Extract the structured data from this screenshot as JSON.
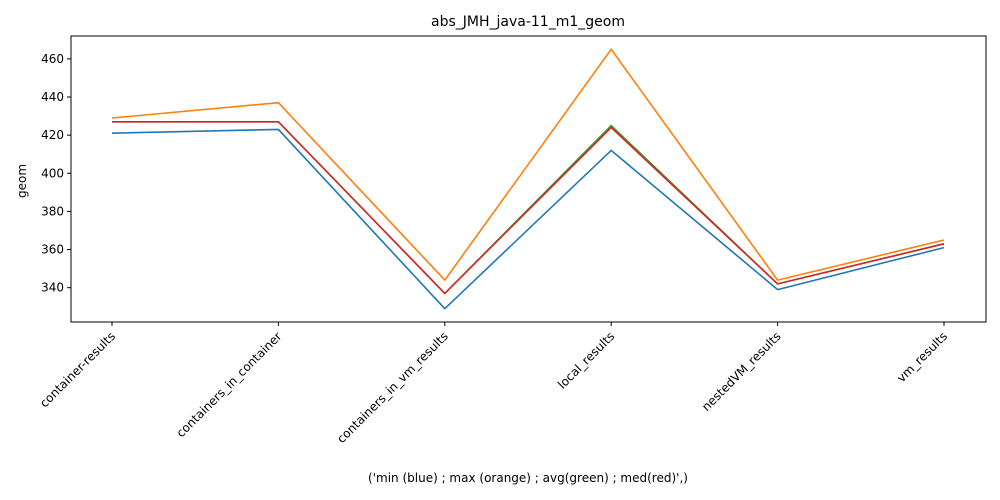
{
  "chart_data": {
    "type": "line",
    "title": "abs_JMH_java-11_m1_geom",
    "xlabel": "('min (blue) ; max (orange) ; avg(green) ; med(red)',)",
    "ylabel": "geom",
    "categories": [
      "container-results",
      "containers_in_container",
      "containers_in_vm_results",
      "local_results",
      "nestedVM_results",
      "vm_results"
    ],
    "ylim": [
      322,
      472
    ],
    "yticks": [
      340,
      360,
      380,
      400,
      420,
      440,
      460
    ],
    "grid": false,
    "series": [
      {
        "color": "#1f77b4",
        "values": [
          421,
          423,
          329,
          412,
          339,
          361
        ]
      },
      {
        "color": "#ff7f0e",
        "values": [
          429,
          437,
          344,
          465,
          344,
          365
        ]
      },
      {
        "color": "#2ca02c",
        "values": [
          427,
          427,
          337,
          425,
          342,
          363
        ]
      },
      {
        "color": "#d62728",
        "values": [
          427,
          427,
          337,
          424,
          342,
          363
        ]
      }
    ]
  }
}
